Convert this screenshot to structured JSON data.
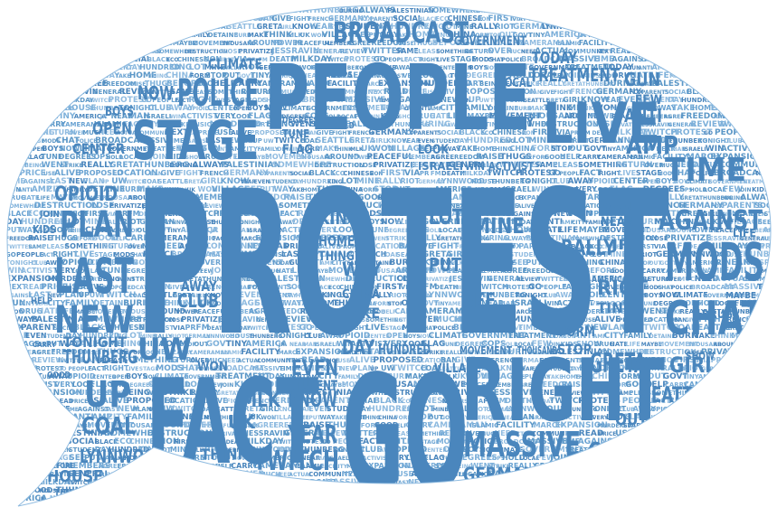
{
  "colors": {
    "word_primary": "#4a86bd",
    "word_light": "#6aa3d2",
    "word_pale": "#8fbbe0",
    "background": "#ffffff"
  },
  "shape": "speech-bubble",
  "words": [
    "PROTEST",
    "GO",
    "PEOPLE",
    "FACT",
    "RIGHT",
    "LIVE",
    "STAGE",
    "MODS",
    "CHAT",
    "POLICE",
    "BROADCAST",
    "MASSIVE",
    "TIME",
    "AGAINST",
    "LAST",
    "NEW",
    "PLAN",
    "UP",
    "UW",
    "TWITCH",
    "COAL",
    "SEATTLE",
    "GRETA",
    "GIRL",
    "KNOW",
    "YEAR",
    "EVEN",
    "STUDENT",
    "DAY",
    "HUNDRED",
    "KING",
    "LOT",
    "MINE",
    "RALLY",
    "RIOT",
    "GERMAN",
    "LYNNWOOD",
    "HOUSE",
    "THUNBERG",
    "TONIGHT",
    "CLUB",
    "AWAY",
    "OPIOID",
    "CENTER",
    "OPEN",
    "BOYS",
    "NOW",
    "CLIMATE",
    "GOVERNMENT",
    "TREATMENT",
    "TODAY",
    "GUN",
    "ANTI",
    "AMP",
    "CITY",
    "FAMILY",
    "DETAINE",
    "BURN",
    "MAKE",
    "THINK",
    "MLK",
    "UK",
    "WON",
    "VILLAGE",
    "SEE",
    "PUT",
    "WAY",
    "TAKE",
    "HOME",
    "THING",
    "CHINA",
    "FORM",
    "STOP",
    "OUT",
    "GOVT",
    "TINY",
    "AMERICA",
    "JR",
    "NEAR",
    "MAN",
    "ISRAELI",
    "WIN",
    "ACTIVIST",
    "VERY",
    "LOOK",
    "FLAG",
    "TUNE",
    "DEGREES",
    "COPS",
    "HOLD",
    "LOCAL",
    "FEW",
    "JOIN",
    "KIDS",
    "SHOW",
    "DRUG",
    "HATE",
    "LIFE",
    "MAYBE",
    "MOVEMENT",
    "THOUSAND",
    "AROUND",
    "POWER",
    "PEACEFUL",
    "MEMBERS",
    "AGREE",
    "FREEDOM",
    "RAISE",
    "THUGS",
    "BEFORE",
    "GOOD",
    "HELP",
    "CARRY",
    "CAMERAMAN",
    "ISLAMIC",
    "FACILITY",
    "MARCH",
    "EXPANSION",
    "MURDERED",
    "START",
    "BEING",
    "WENT",
    "STRIKE",
    "REALLY",
    "GRETATHUNBERG",
    "DURING",
    "ALWAYS",
    "PALESTINIAN",
    "SOMEWHERE",
    "DESTRUCTION",
    "CLOSE",
    "PRIVATIZE",
    "JESSRAVIN",
    "GENERAL",
    "REVIEW",
    "TWITTER",
    "SAME",
    "PLEASE",
    "SOMETHING",
    "RETURN",
    "OVER",
    "MUCH",
    "NEED",
    "ACTUAL",
    "COMMUNITY",
    "NEXT",
    "READ",
    "PRICE",
    "USE",
    "ALIVE",
    "PROPOSED",
    "LOCATION",
    "BAN",
    "GIVE",
    "FIGHT",
    "FRENCH",
    "GERMANY",
    "FOX",
    "PARENTS",
    "SOCIAL",
    "BLACK",
    "ECO",
    "CHINESE",
    "NON",
    "FIRST",
    "VIA",
    "PR",
    "FM",
    "DEATH",
    "MILKDAY",
    "TWITCH"
  ]
}
